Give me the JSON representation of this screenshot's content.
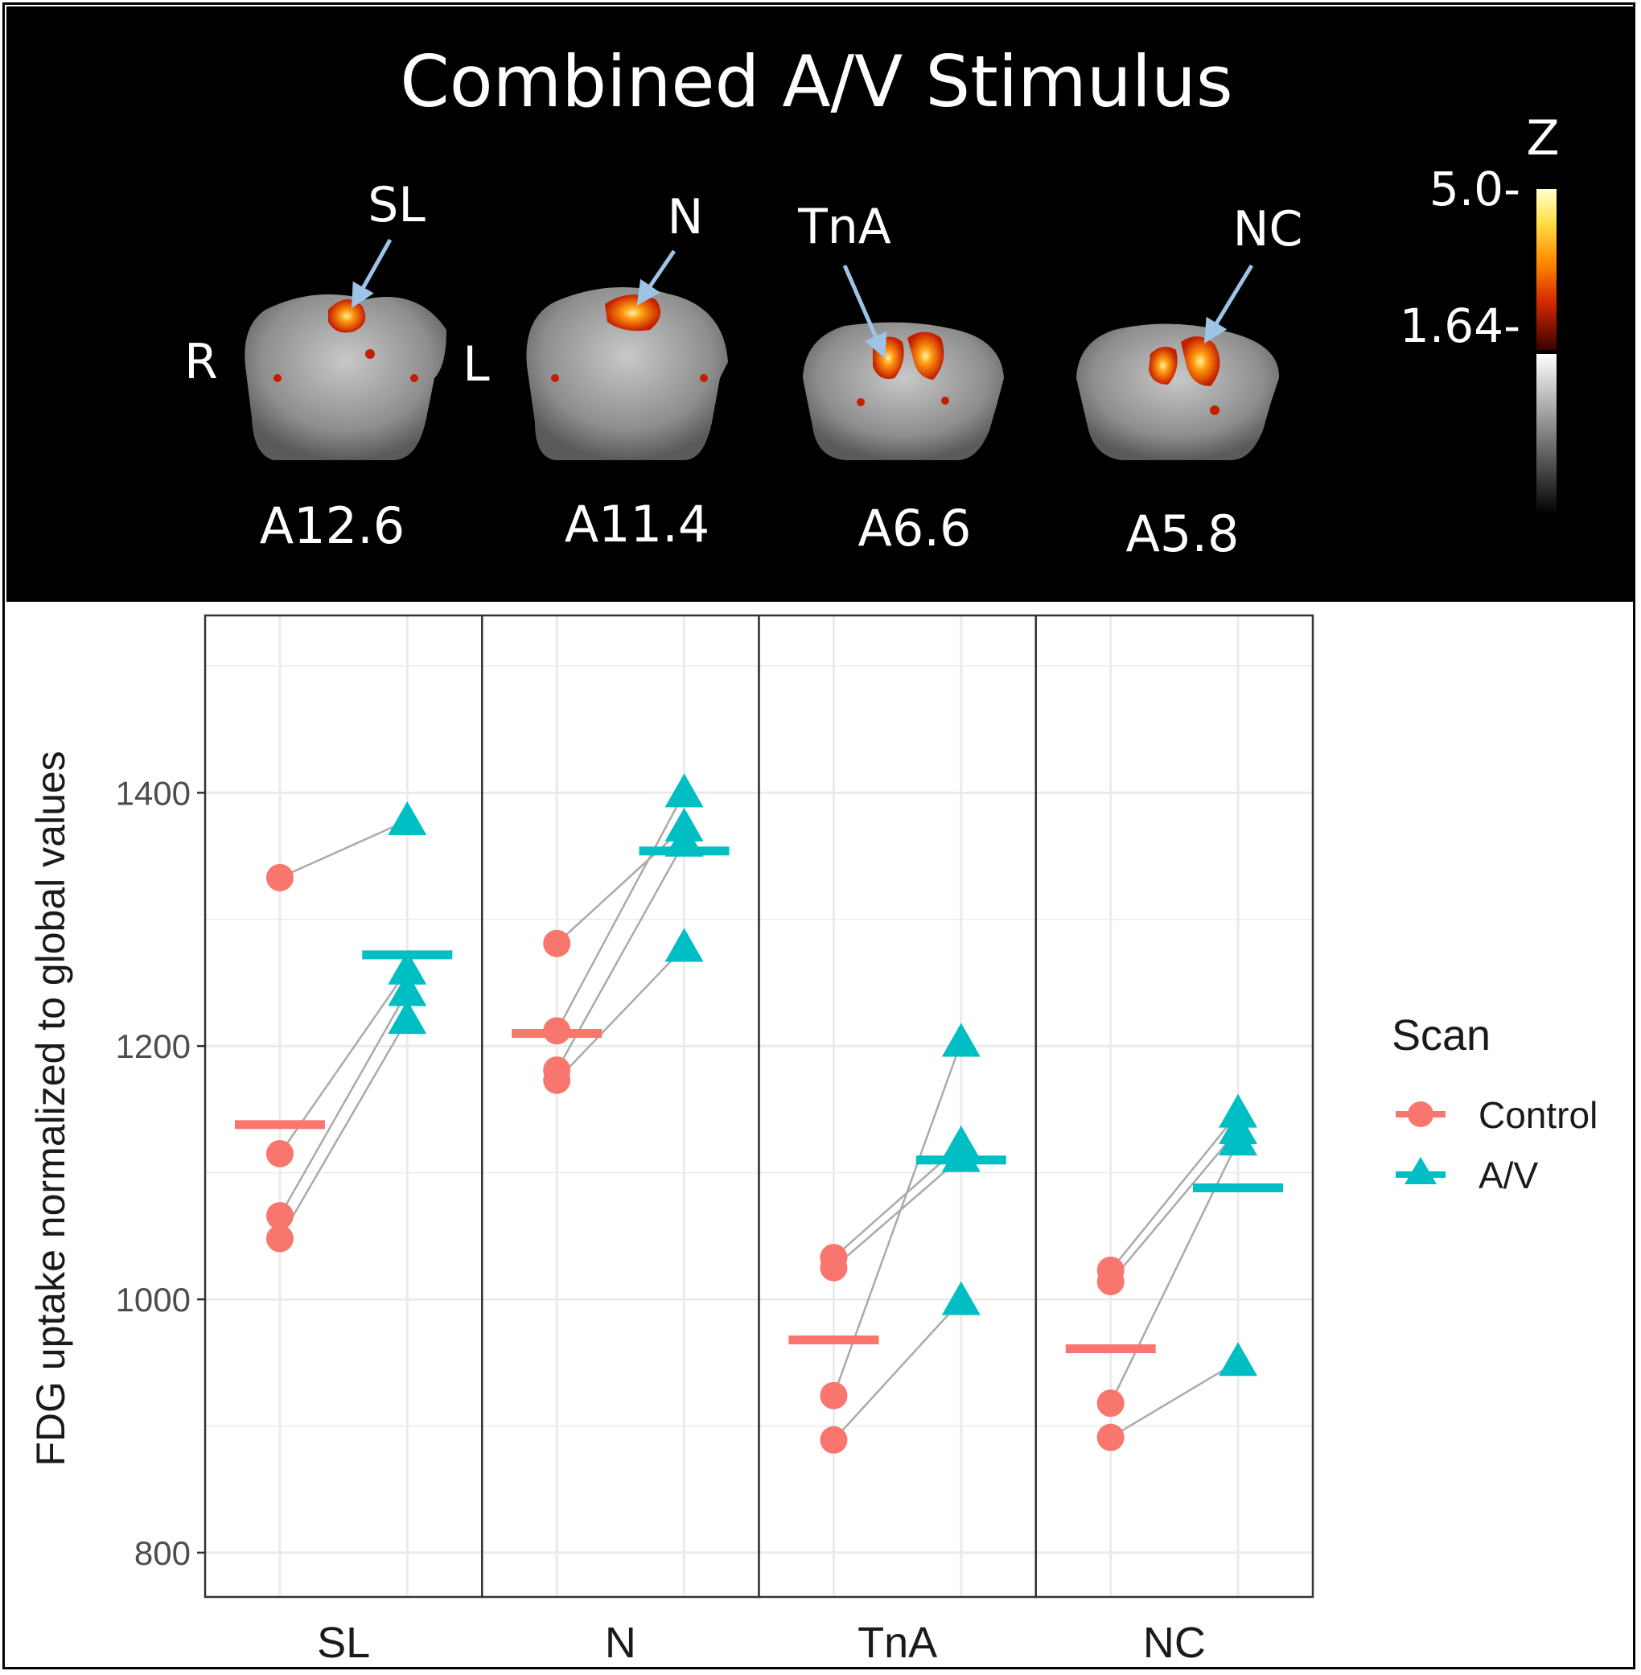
{
  "figure_title": "Combined A/V Stimulus",
  "brain_panel": {
    "orientation_left": "R",
    "orientation_right": "L",
    "slices": [
      {
        "region": "SL",
        "coordinate": "A12.6"
      },
      {
        "region": "N",
        "coordinate": "A11.4"
      },
      {
        "region": "TnA",
        "coordinate": "A6.6"
      },
      {
        "region": "NC",
        "coordinate": "A5.8"
      }
    ],
    "colorbar": {
      "label": "Z",
      "max_label": "5.0-",
      "threshold_label": "1.64-"
    }
  },
  "colors": {
    "control": "#F8766D",
    "av": "#00BFC4",
    "panel_bg": "#000000",
    "grid": "#EBEBEB",
    "arrow": "#9DC3E6"
  },
  "chart_data": {
    "type": "scatter",
    "title": "",
    "xlabel": "",
    "ylabel": "FDG uptake normalized to global values",
    "ylim": [
      765,
      1540
    ],
    "yticks": [
      800,
      1000,
      1200,
      1400
    ],
    "ytick_labels": [
      "800",
      "1000",
      "1200",
      "1400"
    ],
    "facets": [
      "SL",
      "N",
      "TnA",
      "NC"
    ],
    "legend": {
      "title": "Scan",
      "position": "right",
      "entries": [
        "Control",
        "A/V"
      ]
    },
    "series": [
      {
        "name": "Control",
        "marker": "circle",
        "values": {
          "SL": [
            1333,
            1115,
            1066,
            1048
          ],
          "N": [
            1281,
            1212,
            1181,
            1173
          ],
          "TnA": [
            1033,
            1025,
            924,
            889
          ],
          "NC": [
            1023,
            1014,
            918,
            891
          ]
        },
        "means": {
          "SL": 1138,
          "N": 1210,
          "TnA": 968,
          "NC": 961
        }
      },
      {
        "name": "A/V",
        "marker": "triangle",
        "values": {
          "SL": [
            1378,
            1260,
            1243,
            1221
          ],
          "N": [
            1400,
            1373,
            1361,
            1278
          ],
          "TnA": [
            1203,
            1122,
            1112,
            999
          ],
          "NC": [
            1147,
            1134,
            1125,
            951
          ]
        },
        "means": {
          "SL": 1272,
          "N": 1354,
          "TnA": 1110,
          "NC": 1088
        }
      }
    ],
    "pairs": {
      "SL": [
        [
          1333,
          1378
        ],
        [
          1115,
          1260
        ],
        [
          1066,
          1243
        ],
        [
          1048,
          1221
        ]
      ],
      "N": [
        [
          1281,
          1373
        ],
        [
          1212,
          1400
        ],
        [
          1181,
          1361
        ],
        [
          1173,
          1278
        ]
      ],
      "TnA": [
        [
          1033,
          1122
        ],
        [
          1025,
          1112
        ],
        [
          924,
          1203
        ],
        [
          889,
          999
        ]
      ],
      "NC": [
        [
          1023,
          1147
        ],
        [
          1014,
          1134
        ],
        [
          918,
          1125
        ],
        [
          891,
          951
        ]
      ]
    }
  }
}
